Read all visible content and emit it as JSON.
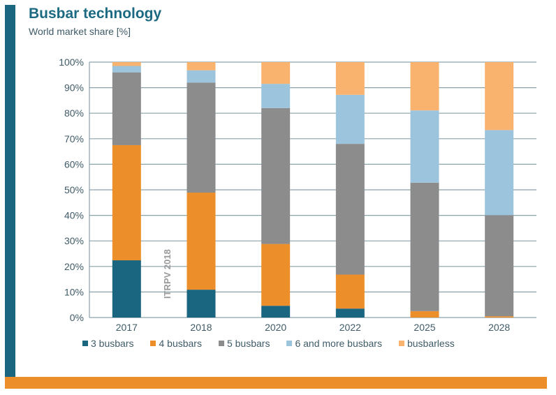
{
  "header": {
    "title": "Busbar technology",
    "subtitle": "World market share [%]"
  },
  "watermark": "ITRPV 2018",
  "chart_data": {
    "type": "bar",
    "stacked": true,
    "title": "Busbar technology",
    "subtitle": "World market share [%]",
    "xlabel": "",
    "ylabel": "World market share [%]",
    "ylim": [
      0,
      100
    ],
    "yticks": [
      "0%",
      "10%",
      "20%",
      "30%",
      "40%",
      "50%",
      "60%",
      "70%",
      "80%",
      "90%",
      "100%"
    ],
    "grid": true,
    "legend_position": "bottom",
    "categories": [
      "2017",
      "2018",
      "2020",
      "2022",
      "2025",
      "2028"
    ],
    "series": [
      {
        "name": "3 busbars",
        "color": "#1a6580",
        "values": [
          22.4,
          10.9,
          4.6,
          3.5,
          0,
          0
        ]
      },
      {
        "name": "4 busbars",
        "color": "#ec8f2b",
        "values": [
          45.1,
          38.0,
          24.2,
          13.3,
          2.5,
          0.5
        ]
      },
      {
        "name": "5 busbars",
        "color": "#8c8c8c",
        "values": [
          28.5,
          43.1,
          53.2,
          51.2,
          50.3,
          39.6
        ]
      },
      {
        "name": "6 and more busbars",
        "color": "#9cc5dd",
        "values": [
          2.5,
          4.8,
          9.5,
          19.2,
          28.3,
          33.3
        ]
      },
      {
        "name": "busbarless",
        "color": "#f9b36f",
        "values": [
          1.5,
          3.2,
          8.5,
          12.8,
          18.9,
          26.6
        ]
      }
    ]
  }
}
